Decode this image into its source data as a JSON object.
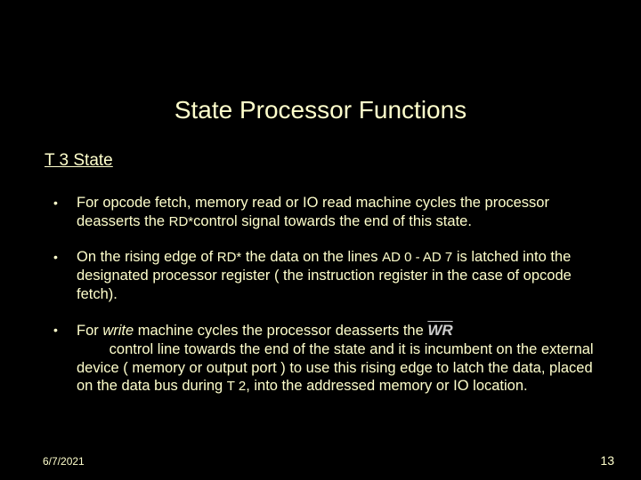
{
  "colors": {
    "background": "#000000",
    "text": "#ffffcc",
    "signal_dim": "#cccccc"
  },
  "typography": {
    "title_fontsize": 28,
    "subtitle_fontsize": 19,
    "body_fontsize": 16.5,
    "footer_fontsize": 12,
    "font_family": "Arial"
  },
  "title": "State Processor Functions",
  "subtitle": "T 3 State",
  "bullets": [
    {
      "pre": "For opcode fetch, memory read or IO read machine cycles the processor deasserts the ",
      "sig1": "RD*",
      "post": "control signal towards the end of this state."
    },
    {
      "pre": "On the rising edge of ",
      "sig1": "RD*",
      "mid": " the data on the lines ",
      "sig2": "AD 0 - AD 7",
      "post": " is latched into the designated processor register ( the instruction register in the case of opcode fetch)."
    },
    {
      "pre": "For ",
      "italic1": " write ",
      "mid1": " machine cycles the processor deasserts the ",
      "wr": "WR",
      "mid2": " control line towards the end of the state and it is incumbent on the external device ( memory or output port ) to use this rising edge to latch the data, placed on the data bus during ",
      "sig1": "T 2",
      "post": ", into the addressed memory or IO location."
    }
  ],
  "footer": {
    "date": "6/7/2021",
    "page": "13"
  }
}
